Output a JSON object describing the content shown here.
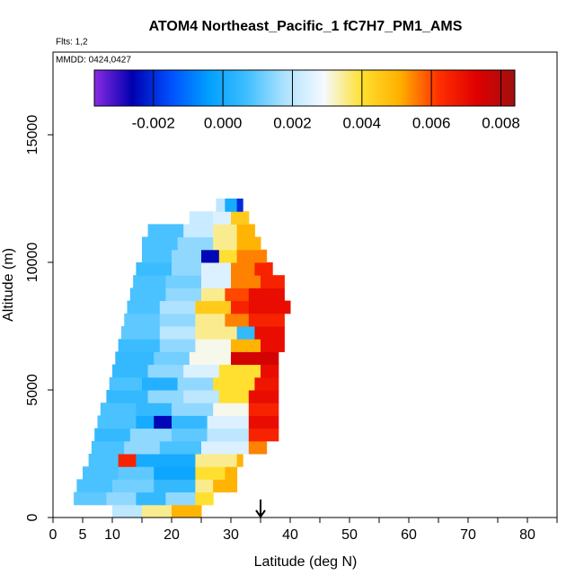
{
  "chart_data": {
    "type": "curtain",
    "title": "ATOM4 Northeast_Pacific_1 fC7H7_PM1_AMS",
    "flights_label": "Flts: 1,2",
    "dates_label": "MMDD: 0424,0427",
    "xlabel": "Latitude (deg N)",
    "ylabel": "Altitude (m)",
    "xlim": [
      0,
      85
    ],
    "ylim": [
      0,
      18240
    ],
    "xticks": [
      0,
      5,
      10,
      20,
      30,
      40,
      50,
      60,
      70,
      80
    ],
    "xticks_minor": [
      15,
      25,
      35,
      45,
      55,
      65,
      75,
      85
    ],
    "yticks": [
      0,
      5000,
      10000,
      15000
    ],
    "clim": [
      -0.0037,
      0.0084
    ],
    "cticks": [
      -0.002,
      {
        "value": 0,
        "label": "0.000"
      },
      0.002,
      0.004,
      0.006,
      0.008
    ],
    "colormap": [
      "#8a2be2",
      "#0000b0",
      "#0050ff",
      "#00a0ff",
      "#40bfff",
      "#b0e2ff",
      "#f5faff",
      "#ffe030",
      "#ffb000",
      "#ff3000",
      "#e00000",
      "#a01010"
    ],
    "arrow_lat": 35,
    "rows": [
      {
        "alt": [
          0,
          500
        ],
        "edges": [
          10,
          15,
          20,
          25
        ],
        "values": [
          0.002,
          0.0035,
          0.005
        ]
      },
      {
        "alt": [
          500,
          1000
        ],
        "edges": [
          3.5,
          9,
          14,
          19,
          24,
          27
        ],
        "values": [
          0.001,
          0.0015,
          0.0005,
          0.0015,
          0.004
        ]
      },
      {
        "alt": [
          1000,
          1500
        ],
        "edges": [
          4,
          10,
          17,
          24,
          27,
          31
        ],
        "values": [
          0.0008,
          0.0012,
          0.0005,
          0.0035,
          0.005
        ]
      },
      {
        "alt": [
          1500,
          2000
        ],
        "edges": [
          5,
          11,
          17,
          24,
          29,
          31
        ],
        "values": [
          0.0008,
          0.001,
          -0.0002,
          0.004,
          0.005
        ]
      },
      {
        "alt": [
          2000,
          2500
        ],
        "edges": [
          6,
          11,
          14,
          24,
          31,
          32
        ],
        "values": [
          0.0008,
          0.0065,
          0.0,
          0.0035,
          0.005
        ]
      },
      {
        "alt": [
          2500,
          3000
        ],
        "edges": [
          6.5,
          12,
          18,
          25,
          33,
          36
        ],
        "values": [
          0.0008,
          0.0015,
          0.0008,
          0.0025,
          0.0055
        ]
      },
      {
        "alt": [
          3000,
          3500
        ],
        "edges": [
          7,
          13,
          20,
          26,
          33,
          38
        ],
        "values": [
          0.0005,
          0.0015,
          0.001,
          0.002,
          0.0065
        ]
      },
      {
        "alt": [
          3500,
          4000
        ],
        "edges": [
          7.5,
          14,
          17,
          20,
          26,
          33,
          38
        ],
        "values": [
          0.0008,
          0.0,
          -0.0025,
          0.0005,
          0.0025,
          0.007
        ]
      },
      {
        "alt": [
          4000,
          4500
        ],
        "edges": [
          8,
          14,
          20,
          27,
          33,
          38
        ],
        "values": [
          0.0008,
          0.0005,
          0.0015,
          0.003,
          0.0065
        ]
      },
      {
        "alt": [
          4500,
          5000
        ],
        "edges": [
          9,
          16,
          22,
          28,
          33,
          38
        ],
        "values": [
          0.0005,
          0.0015,
          0.002,
          0.004,
          0.007
        ]
      },
      {
        "alt": [
          5000,
          5500
        ],
        "edges": [
          9.5,
          15,
          21,
          27,
          34,
          38
        ],
        "values": [
          0.0008,
          0.0002,
          0.0015,
          0.004,
          0.0068
        ]
      },
      {
        "alt": [
          5500,
          6000
        ],
        "edges": [
          10,
          16,
          22,
          28,
          35,
          38
        ],
        "values": [
          0.0005,
          0.0015,
          0.0025,
          0.004,
          0.007
        ]
      },
      {
        "alt": [
          6000,
          6500
        ],
        "edges": [
          10.5,
          17,
          23,
          30,
          38
        ],
        "values": [
          0.0005,
          0.0012,
          0.003,
          0.0075
        ]
      },
      {
        "alt": [
          6500,
          7000
        ],
        "edges": [
          11,
          18,
          24,
          30,
          35,
          39
        ],
        "values": [
          0.0006,
          0.0015,
          0.003,
          0.005,
          0.007
        ]
      },
      {
        "alt": [
          7000,
          7500
        ],
        "edges": [
          11.5,
          18,
          24,
          31,
          34,
          39
        ],
        "values": [
          0.001,
          0.002,
          0.0035,
          0.0005,
          0.007
        ]
      },
      {
        "alt": [
          7500,
          8000
        ],
        "edges": [
          12,
          18,
          24,
          29,
          33,
          39
        ],
        "values": [
          0.001,
          0.0015,
          0.0035,
          0.0055,
          0.0065
        ]
      },
      {
        "alt": [
          8000,
          8500
        ],
        "edges": [
          12.5,
          18,
          24,
          30,
          33,
          40
        ],
        "values": [
          0.0008,
          0.0018,
          0.0045,
          0.0065,
          0.007
        ]
      },
      {
        "alt": [
          8500,
          9000
        ],
        "edges": [
          13,
          19,
          25,
          29,
          33,
          39
        ],
        "values": [
          0.0008,
          0.0015,
          0.0035,
          0.006,
          0.007
        ]
      },
      {
        "alt": [
          9000,
          9500
        ],
        "edges": [
          13.5,
          19,
          25,
          30,
          35,
          39
        ],
        "values": [
          0.0008,
          0.0012,
          0.0025,
          0.0055,
          0.0065
        ]
      },
      {
        "alt": [
          9500,
          10000
        ],
        "edges": [
          14,
          20,
          25,
          30,
          34,
          37
        ],
        "values": [
          0.0006,
          0.0015,
          0.0025,
          0.0055,
          0.0065
        ]
      },
      {
        "alt": [
          10000,
          10500
        ],
        "edges": [
          15,
          20,
          25,
          28,
          31,
          36
        ],
        "values": [
          0.0008,
          0.0015,
          -0.0025,
          0.004,
          0.0055
        ]
      },
      {
        "alt": [
          10500,
          11000
        ],
        "edges": [
          15,
          21,
          27,
          31,
          35
        ],
        "values": [
          0.0008,
          0.0015,
          0.0035,
          0.005
        ]
      },
      {
        "alt": [
          11000,
          11500
        ],
        "edges": [
          16,
          22,
          27,
          31,
          34
        ],
        "values": [
          0.0008,
          0.0022,
          0.0035,
          0.005
        ]
      },
      {
        "alt": [
          11500,
          12000
        ],
        "edges": [
          23,
          27,
          30,
          33
        ],
        "values": [
          0.0022,
          0.0025,
          0.0045
        ]
      },
      {
        "alt": [
          12000,
          12500
        ],
        "edges": [
          27.5,
          29,
          31,
          32
        ],
        "values": [
          0.002,
          0.0,
          -0.002
        ]
      }
    ]
  }
}
